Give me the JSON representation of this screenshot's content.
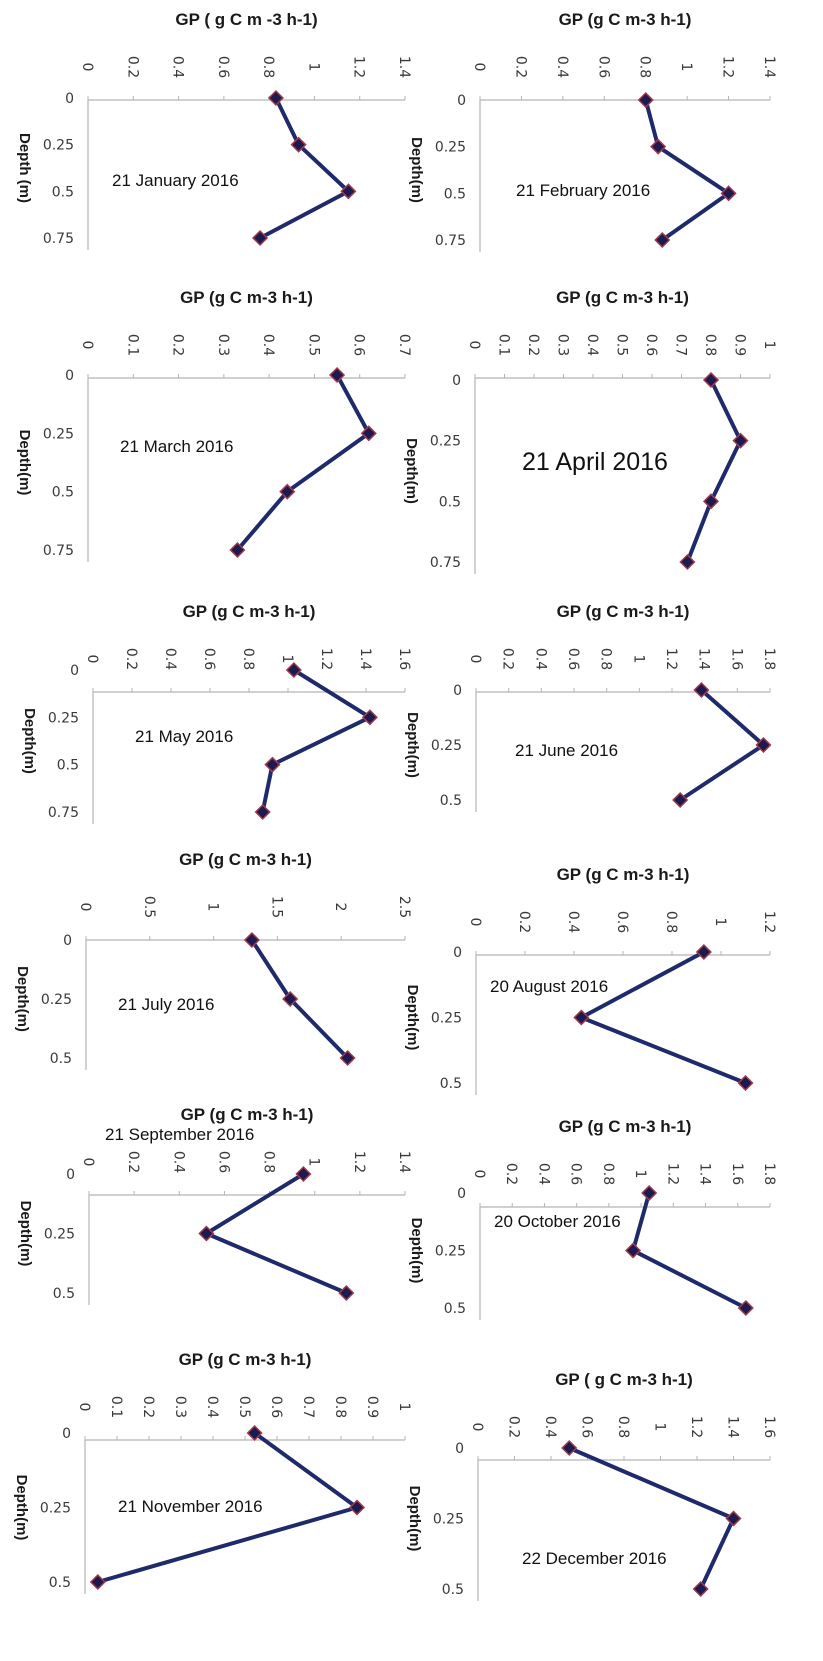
{
  "chart_data": [
    {
      "type": "line",
      "title": "GP ( g C m -3 h-1)",
      "xlabel": "GP ( g C m -3 h-1)",
      "ylabel": "Depth (m)",
      "date_label": "21 January 2016",
      "xlim": [
        0,
        1.4
      ],
      "xticks": [
        "0",
        "0.2",
        "0.4",
        "0.6",
        "0.8",
        "1",
        "1.2",
        "1.4"
      ],
      "yticks": [
        "0",
        "0.25",
        "0.5",
        "0.75"
      ],
      "y": [
        0,
        0.25,
        0.5,
        0.75
      ],
      "x": [
        0.83,
        0.93,
        1.15,
        0.76
      ]
    },
    {
      "type": "line",
      "title": "GP (g C m-3 h-1)",
      "xlabel": "GP (g C m-3 h-1)",
      "ylabel": "Depth(m)",
      "date_label": "21 February 2016",
      "xlim": [
        0,
        1.4
      ],
      "xticks": [
        "0",
        "0.2",
        "0.4",
        "0.6",
        "0.8",
        "1",
        "1.2",
        "1.4"
      ],
      "yticks": [
        "0",
        "0.25",
        "0.5",
        "0.75"
      ],
      "y": [
        0,
        0.25,
        0.5,
        0.75
      ],
      "x": [
        0.8,
        0.86,
        1.2,
        0.88
      ]
    },
    {
      "type": "line",
      "title": "GP (g C m-3 h-1)",
      "xlabel": "GP (g C m-3 h-1)",
      "ylabel": "Depth(m)",
      "date_label": "21 March 2016",
      "xlim": [
        0,
        0.7
      ],
      "xticks": [
        "0",
        "0.1",
        "0.2",
        "0.3",
        "0.4",
        "0.5",
        "0.6",
        "0.7"
      ],
      "yticks": [
        "0",
        "0.25",
        "0.5",
        "0.75"
      ],
      "y": [
        0,
        0.25,
        0.5,
        0.75
      ],
      "x": [
        0.55,
        0.62,
        0.44,
        0.33
      ]
    },
    {
      "type": "line",
      "title": "GP (g C m-3 h-1)",
      "xlabel": "GP (g C m-3 h-1)",
      "ylabel": "Depth(m)",
      "date_label": "21 April 2016",
      "xlim": [
        0,
        1
      ],
      "xticks": [
        "0",
        "0.1",
        "0.2",
        "0.3",
        "0.4",
        "0.5",
        "0.6",
        "0.7",
        "0.8",
        "0.9",
        "1"
      ],
      "yticks": [
        "0",
        "0.25",
        "0.5",
        "0.75"
      ],
      "y": [
        0,
        0.25,
        0.5,
        0.75
      ],
      "x": [
        0.8,
        0.9,
        0.8,
        0.72
      ]
    },
    {
      "type": "line",
      "title": "GP (g C m-3 h-1)",
      "xlabel": "GP (g C m-3 h-1)",
      "ylabel": "Depth(m)",
      "date_label": "21 May 2016",
      "xlim": [
        0,
        1.6
      ],
      "xticks": [
        "0",
        "0.2",
        "0.4",
        "0.6",
        "0.8",
        "1",
        "1.2",
        "1.4",
        "1.6"
      ],
      "yticks": [
        "0",
        "0.25",
        "0.5",
        "0.75"
      ],
      "y": [
        0,
        0.25,
        0.5,
        0.75
      ],
      "x": [
        1.03,
        1.42,
        0.92,
        0.87
      ]
    },
    {
      "type": "line",
      "title": "GP (g C m-3 h-1)",
      "xlabel": "GP (g C m-3 h-1)",
      "ylabel": "Depth(m)",
      "date_label": "21 June 2016",
      "xlim": [
        0,
        1.8
      ],
      "xticks": [
        "0",
        "0.2",
        "0.4",
        "0.6",
        "0.8",
        "1",
        "1.2",
        "1.4",
        "1.6",
        "1.8"
      ],
      "yticks": [
        "0",
        "0.25",
        "0.5"
      ],
      "y": [
        0,
        0.25,
        0.5
      ],
      "x": [
        1.38,
        1.76,
        1.25
      ]
    },
    {
      "type": "line",
      "title": "GP (g C m-3 h-1)",
      "xlabel": "GP (g C m-3 h-1)",
      "ylabel": "Depth(m)",
      "date_label": "21 July 2016",
      "xlim": [
        0,
        2.5
      ],
      "xticks": [
        "0",
        "0.5",
        "1",
        "1.5",
        "2",
        "2.5"
      ],
      "yticks": [
        "0",
        "0.25",
        "0.5"
      ],
      "y": [
        0,
        0.25,
        0.5
      ],
      "x": [
        1.3,
        1.6,
        2.05
      ]
    },
    {
      "type": "line",
      "title": "GP (g C m-3 h-1)",
      "xlabel": "GP (g C m-3 h-1)",
      "ylabel": "Depth(m)",
      "date_label": "20 August 2016",
      "xlim": [
        0,
        1.2
      ],
      "xticks": [
        "0",
        "0.2",
        "0.4",
        "0.6",
        "0.8",
        "1",
        "1.2"
      ],
      "yticks": [
        "0",
        "0.25",
        "0.5"
      ],
      "y": [
        0,
        0.25,
        0.5
      ],
      "x": [
        0.93,
        0.43,
        1.1
      ]
    },
    {
      "type": "line",
      "title": "GP (g C m-3 h-1)",
      "xlabel": "GP (g C m-3 h-1)",
      "ylabel": "Depth(m)",
      "date_label": "21 September 2016",
      "xlim": [
        0,
        1.4
      ],
      "xticks": [
        "0",
        "0.2",
        "0.4",
        "0.6",
        "0.8",
        "1",
        "1.2",
        "1.4"
      ],
      "yticks": [
        "0",
        "0.25",
        "0.5"
      ],
      "y": [
        0,
        0.25,
        0.5
      ],
      "x": [
        0.95,
        0.52,
        1.14
      ]
    },
    {
      "type": "line",
      "title": "GP (g C m-3 h-1)",
      "xlabel": "GP (g C m-3 h-1)",
      "ylabel": "Depth(m)",
      "date_label": "20 October 2016",
      "xlim": [
        0,
        1.8
      ],
      "xticks": [
        "0",
        "0.2",
        "0.4",
        "0.6",
        "0.8",
        "1",
        "1.2",
        "1.4",
        "1.6",
        "1.8"
      ],
      "yticks": [
        "0",
        "0.25",
        "0.5"
      ],
      "y": [
        0,
        0.25,
        0.5
      ],
      "x": [
        1.05,
        0.95,
        1.65
      ]
    },
    {
      "type": "line",
      "title": "GP (g C m-3 h-1)",
      "xlabel": "GP (g C m-3 h-1)",
      "ylabel": "Depth(m)",
      "date_label": "21 November 2016",
      "xlim": [
        0,
        1
      ],
      "xticks": [
        "0",
        "0.1",
        "0.2",
        "0.3",
        "0.4",
        "0.5",
        "0.6",
        "0.7",
        "0.8",
        "0.9",
        "1"
      ],
      "yticks": [
        "0",
        "0.25",
        "0.5"
      ],
      "y": [
        0,
        0.25,
        0.5
      ],
      "x": [
        0.53,
        0.85,
        0.04
      ]
    },
    {
      "type": "line",
      "title": "GP ( g C m-3 h-1)",
      "xlabel": "GP ( g C m-3 h-1)",
      "ylabel": "Depth(m)",
      "date_label": "22 December 2016",
      "xlim": [
        0,
        1.6
      ],
      "xticks": [
        "0",
        "0.2",
        "0.4",
        "0.6",
        "0.8",
        "1",
        "1.2",
        "1.4",
        "1.6"
      ],
      "yticks": [
        "0",
        "0.25",
        "0.5"
      ],
      "y": [
        0,
        0.25,
        0.5
      ],
      "x": [
        0.5,
        1.4,
        1.22
      ]
    }
  ]
}
